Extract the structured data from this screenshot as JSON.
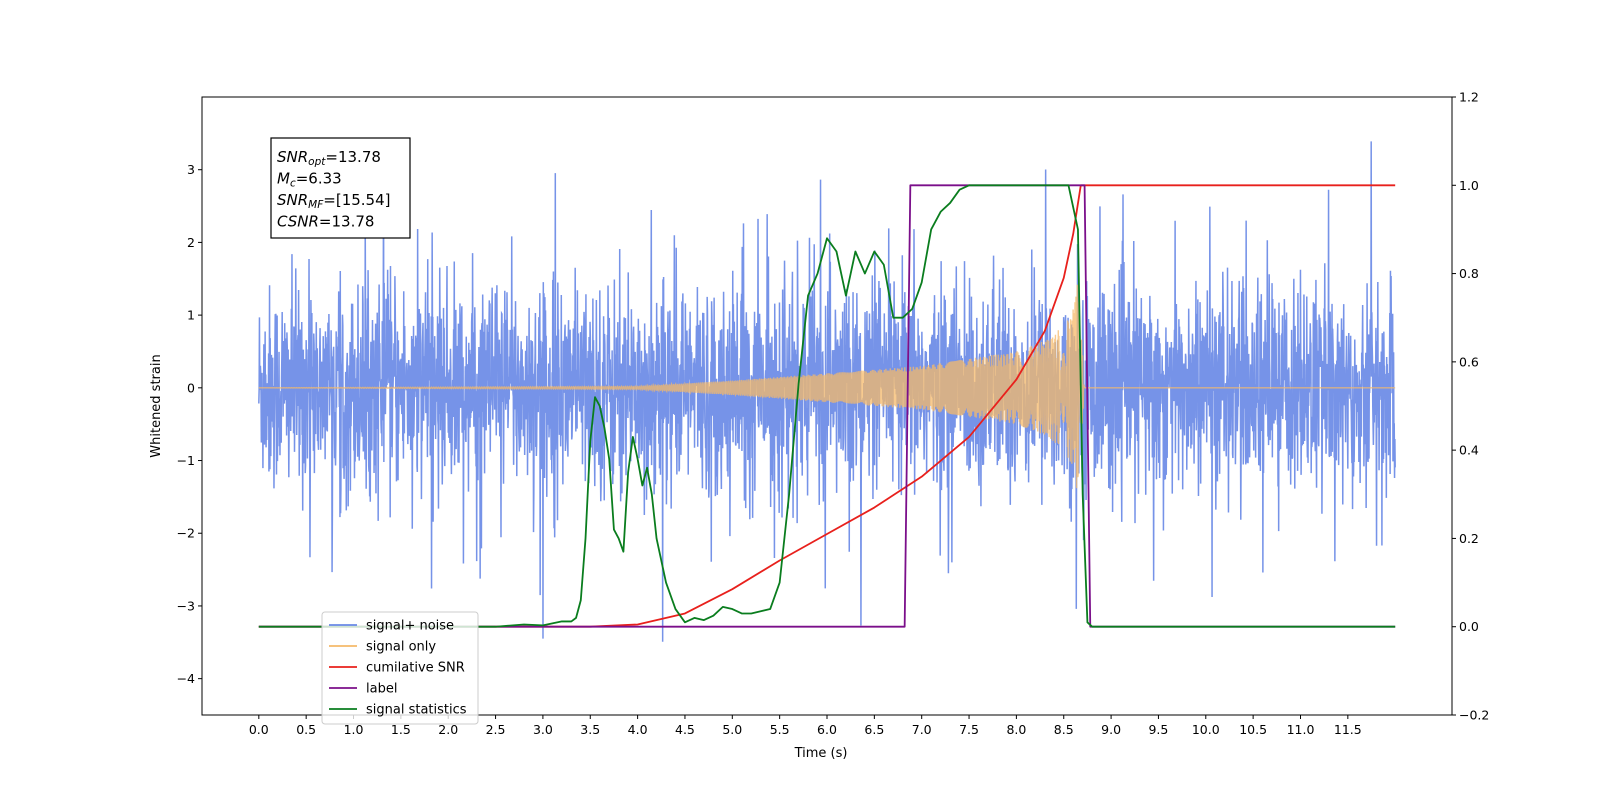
{
  "chart_data": {
    "type": "line",
    "title": "",
    "xlabel": "Time (s)",
    "ylabel": "Whitened strain",
    "y2label": "",
    "xlim": [
      -0.6,
      12.6
    ],
    "ylim": [
      -4.5,
      4.0
    ],
    "y2lim": [
      -0.2,
      1.2
    ],
    "x_ticks": [
      0.0,
      0.5,
      1.0,
      1.5,
      2.0,
      2.5,
      3.0,
      3.5,
      4.0,
      4.5,
      5.0,
      5.5,
      6.0,
      6.5,
      7.0,
      7.5,
      8.0,
      8.5,
      9.0,
      9.5,
      10.0,
      10.5,
      11.0,
      11.5
    ],
    "x_tick_labels": [
      "0.0",
      "0.5",
      "1.0",
      "1.5",
      "2.0",
      "2.5",
      "3.0",
      "3.5",
      "4.0",
      "4.5",
      "5.0",
      "5.5",
      "6.0",
      "6.5",
      "7.0",
      "7.5",
      "8.0",
      "8.5",
      "9.0",
      "9.5",
      "10.0",
      "10.5",
      "11.0",
      "11.5"
    ],
    "y_ticks": [
      -4,
      -3,
      -2,
      -1,
      0,
      1,
      2,
      3
    ],
    "y_tick_labels": [
      "−4",
      "−3",
      "−2",
      "−1",
      "0",
      "1",
      "2",
      "3"
    ],
    "y2_ticks": [
      -0.2,
      0.0,
      0.2,
      0.4,
      0.6,
      0.8,
      1.0,
      1.2
    ],
    "y2_tick_labels": [
      "−0.2",
      "0.0",
      "0.2",
      "0.4",
      "0.6",
      "0.8",
      "1.0",
      "1.2"
    ],
    "grid": false,
    "legend_position": "lower-left",
    "annotation": {
      "lines": [
        {
          "base": "SNR",
          "sub": "opt",
          "value": "=13.78"
        },
        {
          "base": "M",
          "sub": "c",
          "value": "=6.33"
        },
        {
          "base": "SNR",
          "sub": "MF",
          "value": "=[15.54]"
        },
        {
          "base": "CSNR",
          "sub": "",
          "value": "=13.78"
        }
      ]
    },
    "series": [
      {
        "name": "signal+ noise",
        "color": "#6a8ae6",
        "axis": "left",
        "kind": "noise",
        "x_range": [
          0.0,
          12.0
        ],
        "typical_amplitude": 1.6,
        "max": 3.6,
        "min": -4.1
      },
      {
        "name": "signal only",
        "color": "#f5b96a",
        "axis": "left",
        "kind": "chirp",
        "x_range": [
          0.0,
          12.0
        ],
        "merger_time": 8.65,
        "envelope": {
          "x": [
            0.0,
            4.0,
            5.0,
            6.0,
            7.0,
            7.5,
            8.0,
            8.3,
            8.5,
            8.6,
            8.65,
            8.72
          ],
          "y": [
            0.0,
            0.02,
            0.1,
            0.2,
            0.3,
            0.4,
            0.5,
            0.65,
            0.85,
            1.1,
            1.5,
            0.0
          ]
        }
      },
      {
        "name": "cumilative SNR",
        "color": "#e8201c",
        "axis": "right",
        "x": [
          0.0,
          3.5,
          4.0,
          4.5,
          5.0,
          5.5,
          6.0,
          6.5,
          7.0,
          7.5,
          8.0,
          8.3,
          8.5,
          8.6,
          8.68,
          8.72,
          12.0
        ],
        "y": [
          0.0,
          0.0,
          0.005,
          0.03,
          0.085,
          0.15,
          0.21,
          0.27,
          0.34,
          0.43,
          0.56,
          0.67,
          0.79,
          0.89,
          1.0,
          1.0,
          1.0
        ]
      },
      {
        "name": "label",
        "color": "#7b0f8a",
        "axis": "right",
        "x": [
          0.0,
          6.82,
          6.88,
          8.72,
          8.78,
          12.0
        ],
        "y": [
          0.0,
          0.0,
          1.0,
          1.0,
          0.0,
          0.0
        ]
      },
      {
        "name": "signal statistics",
        "color": "#0a7d1e",
        "axis": "right",
        "x": [
          0.0,
          2.5,
          2.8,
          3.0,
          3.2,
          3.3,
          3.35,
          3.4,
          3.45,
          3.5,
          3.55,
          3.6,
          3.65,
          3.7,
          3.75,
          3.8,
          3.85,
          3.9,
          3.95,
          4.0,
          4.05,
          4.1,
          4.15,
          4.2,
          4.3,
          4.4,
          4.5,
          4.6,
          4.7,
          4.8,
          4.9,
          5.0,
          5.1,
          5.2,
          5.3,
          5.4,
          5.5,
          5.6,
          5.7,
          5.8,
          5.9,
          6.0,
          6.1,
          6.2,
          6.3,
          6.4,
          6.5,
          6.6,
          6.7,
          6.8,
          6.9,
          7.0,
          7.1,
          7.2,
          7.3,
          7.4,
          7.5,
          7.6,
          7.7,
          8.0,
          8.3,
          8.55,
          8.65,
          8.7,
          8.75,
          8.8,
          8.9,
          12.0
        ],
        "y": [
          0.0,
          0.0,
          0.005,
          0.003,
          0.012,
          0.012,
          0.02,
          0.06,
          0.2,
          0.42,
          0.52,
          0.5,
          0.45,
          0.38,
          0.22,
          0.2,
          0.17,
          0.35,
          0.43,
          0.38,
          0.32,
          0.36,
          0.3,
          0.2,
          0.1,
          0.04,
          0.01,
          0.02,
          0.015,
          0.025,
          0.045,
          0.04,
          0.03,
          0.03,
          0.035,
          0.04,
          0.1,
          0.3,
          0.55,
          0.75,
          0.8,
          0.88,
          0.85,
          0.75,
          0.85,
          0.8,
          0.85,
          0.82,
          0.7,
          0.7,
          0.72,
          0.78,
          0.9,
          0.94,
          0.96,
          0.99,
          1.0,
          1.0,
          1.0,
          1.0,
          1.0,
          1.0,
          0.9,
          0.3,
          0.01,
          0.0,
          0.0,
          0.0
        ]
      }
    ],
    "legend": [
      {
        "label": "signal+ noise",
        "color": "#6a8ae6"
      },
      {
        "label": "signal only",
        "color": "#f5b96a"
      },
      {
        "label": "cumilative SNR",
        "color": "#e8201c"
      },
      {
        "label": "label",
        "color": "#7b0f8a"
      },
      {
        "label": "signal statistics",
        "color": "#0a7d1e"
      }
    ]
  }
}
